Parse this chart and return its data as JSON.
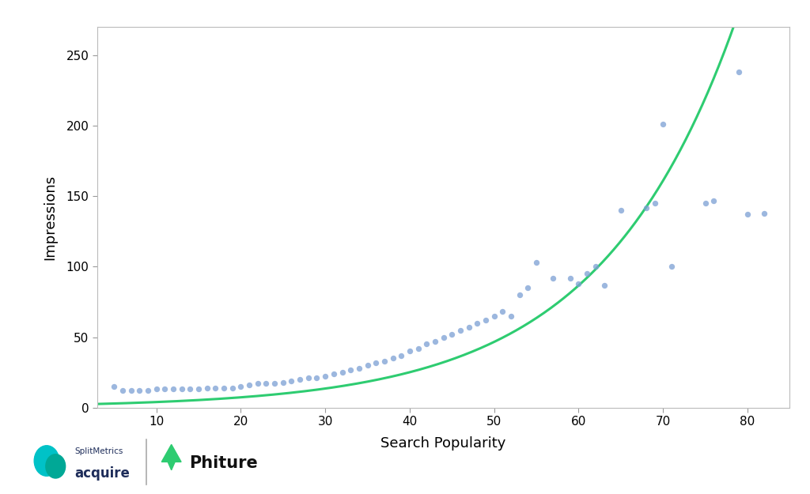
{
  "scatter_x": [
    5,
    6,
    7,
    8,
    9,
    10,
    11,
    12,
    13,
    14,
    15,
    16,
    17,
    18,
    19,
    20,
    21,
    22,
    23,
    24,
    25,
    26,
    27,
    28,
    29,
    30,
    31,
    32,
    33,
    34,
    35,
    36,
    37,
    38,
    39,
    40,
    41,
    42,
    43,
    44,
    45,
    46,
    47,
    48,
    49,
    50,
    51,
    52,
    53,
    54,
    55,
    57,
    59,
    60,
    61,
    62,
    63,
    65,
    68,
    69,
    70,
    71,
    75,
    76,
    79,
    80,
    82
  ],
  "scatter_y": [
    15,
    12,
    12,
    12,
    12,
    13,
    13,
    13,
    13,
    13,
    13,
    14,
    14,
    14,
    14,
    15,
    16,
    17,
    17,
    17,
    18,
    19,
    20,
    21,
    21,
    22,
    24,
    25,
    27,
    28,
    30,
    32,
    33,
    35,
    37,
    40,
    42,
    45,
    47,
    50,
    52,
    55,
    57,
    60,
    62,
    65,
    68,
    65,
    80,
    85,
    103,
    92,
    92,
    88,
    95,
    100,
    87,
    140,
    142,
    145,
    201,
    100,
    145,
    147,
    238,
    137,
    138
  ],
  "curve_color": "#2ecc71",
  "scatter_color": "#7b9fd4",
  "scatter_alpha": 0.75,
  "scatter_size": 28,
  "xlabel": "Search Popularity",
  "ylabel": "Impressions",
  "xlim": [
    3,
    85
  ],
  "ylim": [
    0,
    270
  ],
  "yticks": [
    0,
    50,
    100,
    150,
    200,
    250
  ],
  "xticks": [
    10,
    20,
    30,
    40,
    50,
    60,
    70,
    80
  ],
  "background_color": "#ffffff",
  "plot_bg_color": "#ffffff",
  "curve_linewidth": 2.2,
  "xlabel_fontsize": 13,
  "ylabel_fontsize": 13,
  "tick_fontsize": 11,
  "fit_a": 2.1,
  "fit_b": 0.062
}
